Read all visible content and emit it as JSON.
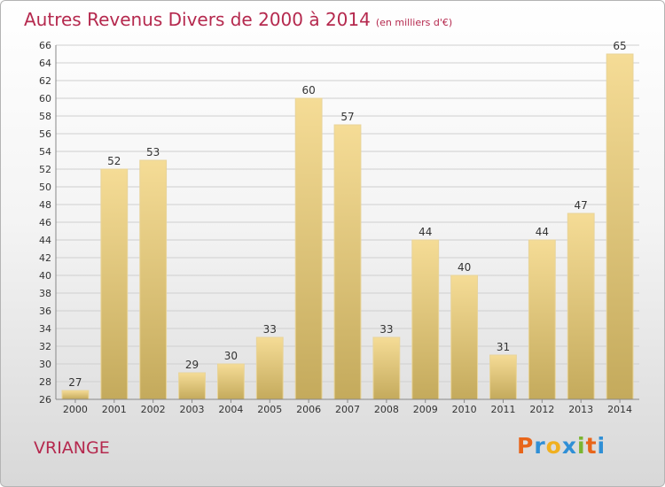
{
  "title": "Autres Revenus Divers de 2000 à 2014",
  "subtitle": "(en milliers d'€)",
  "commune": "VRIANGE",
  "logo": {
    "p": "P",
    "r": "r",
    "o": "o",
    "x": "x",
    "i": "i",
    "t": "t",
    "i2": "i"
  },
  "colors": {
    "title": "#b5294e",
    "bar_light": "#f5dc96",
    "bar_dark": "#c4aa5c",
    "bar_stroke": "#e8d49a",
    "grid": "#cfcfcf",
    "text": "#333333"
  },
  "chart_data": {
    "type": "bar",
    "title": "Autres Revenus Divers de 2000 à 2014",
    "subtitle": "(en milliers d'€)",
    "xlabel": "",
    "ylabel": "",
    "categories": [
      "2000",
      "2001",
      "2002",
      "2003",
      "2004",
      "2005",
      "2006",
      "2007",
      "2008",
      "2009",
      "2010",
      "2011",
      "2012",
      "2013",
      "2014"
    ],
    "values": [
      27,
      52,
      53,
      29,
      30,
      33,
      60,
      57,
      33,
      44,
      40,
      31,
      44,
      47,
      65
    ],
    "ylim": [
      26,
      66
    ],
    "yticks": [
      26,
      28,
      30,
      32,
      34,
      36,
      38,
      40,
      42,
      44,
      46,
      48,
      50,
      52,
      54,
      56,
      58,
      60,
      62,
      64,
      66
    ],
    "grid": true,
    "legend": "none"
  }
}
